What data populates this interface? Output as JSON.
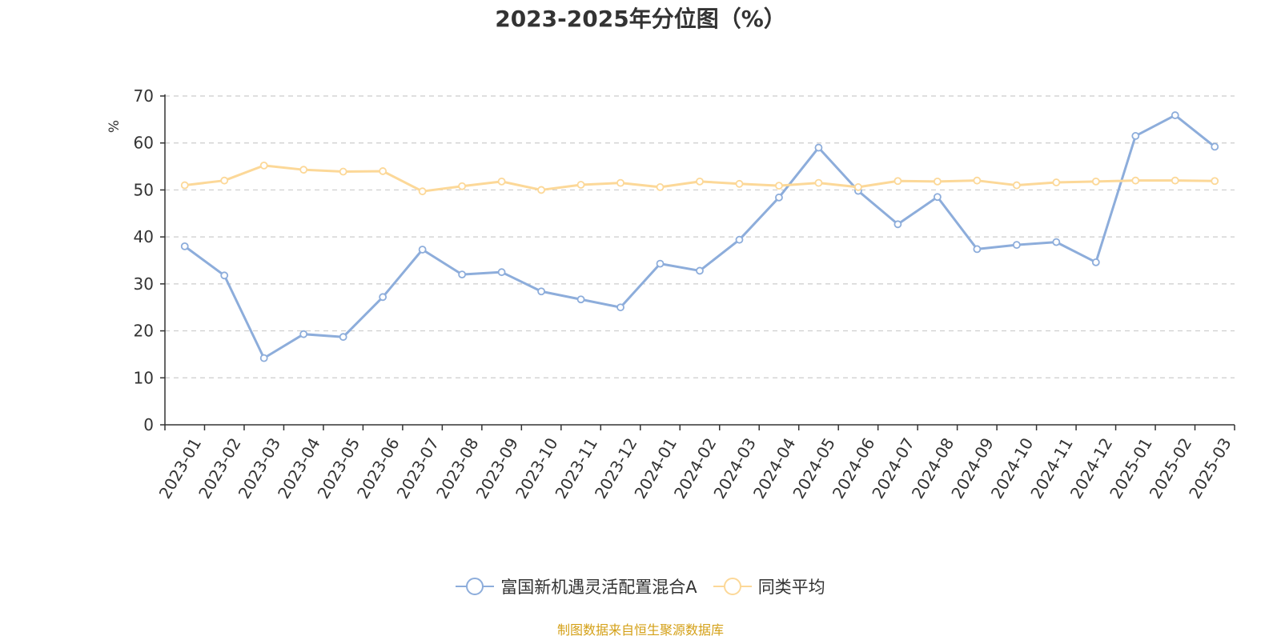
{
  "chart_data": {
    "type": "line",
    "title": "2023-2025年分位图（%）",
    "ylabel": "%",
    "ylim": [
      0,
      70
    ],
    "yticks": [
      0,
      10,
      20,
      30,
      40,
      50,
      60,
      70
    ],
    "grid": true,
    "legend_position": "bottom",
    "categories": [
      "2023-01",
      "2023-02",
      "2023-03",
      "2023-04",
      "2023-05",
      "2023-06",
      "2023-07",
      "2023-08",
      "2023-09",
      "2023-10",
      "2023-11",
      "2023-12",
      "2024-01",
      "2024-02",
      "2024-03",
      "2024-04",
      "2024-05",
      "2024-06",
      "2024-07",
      "2024-08",
      "2024-09",
      "2024-10",
      "2024-11",
      "2024-12",
      "2025-01",
      "2025-02",
      "2025-03"
    ],
    "series": [
      {
        "name": "富国新机遇灵活配置混合A",
        "color": "#8daddb",
        "values": [
          38.0,
          31.8,
          14.2,
          19.3,
          18.7,
          27.2,
          37.3,
          32.0,
          32.5,
          28.4,
          26.7,
          25.0,
          34.3,
          32.8,
          39.4,
          48.4,
          59.0,
          49.8,
          42.7,
          48.5,
          37.4,
          38.3,
          38.9,
          34.6,
          61.5,
          65.9,
          59.2
        ]
      },
      {
        "name": "同类平均",
        "color": "#fcd898",
        "values": [
          51.0,
          52.0,
          55.2,
          54.3,
          53.9,
          54.0,
          49.7,
          50.8,
          51.8,
          50.0,
          51.1,
          51.5,
          50.6,
          51.8,
          51.3,
          50.9,
          51.5,
          50.6,
          51.9,
          51.8,
          52.0,
          51.0,
          51.6,
          51.8,
          52.0,
          52.0,
          51.9
        ]
      }
    ]
  },
  "source_note": "制图数据来自恒生聚源数据库",
  "colors": {
    "axis": "#333333",
    "grid": "#cccccc",
    "ylabel": "#ff0000",
    "source_note": "#d4a017"
  }
}
